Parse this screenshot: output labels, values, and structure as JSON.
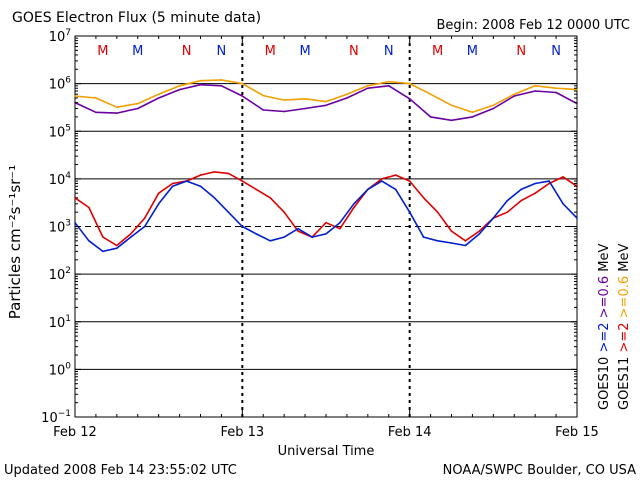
{
  "title": "GOES Electron Flux (5 minute data)",
  "begin": "Begin: 2008 Feb 12 0000 UTC",
  "updated": "Updated 2008 Feb 14 23:55:02 UTC",
  "credit": "NOAA/SWPC Boulder, CO USA",
  "colors": {
    "red": "#e00000",
    "blue": "#0020d0",
    "purple": "#6a00a0",
    "orange": "#f0a000",
    "threshold": "#000000"
  },
  "chart_data": {
    "type": "line",
    "title": "GOES Electron Flux (5 minute data)",
    "xlabel": "Universal Time",
    "ylabel": "Particles cm⁻²s⁻¹sr⁻¹",
    "y_scale": "log",
    "ylim": [
      0.1,
      10000000
    ],
    "xlim": [
      "2008-02-12 00:00",
      "2008-02-15 00:00"
    ],
    "x_ticks": [
      "Feb 12",
      "Feb 13",
      "Feb 14",
      "Feb 15"
    ],
    "y_tick_exponents": [
      -1,
      0,
      1,
      2,
      3,
      4,
      5,
      6,
      7
    ],
    "y_tick_base": "10",
    "threshold_lines": [
      1000
    ],
    "grid": true,
    "local_time_markers": [
      {
        "label": "M",
        "color": "red",
        "x": "2008-02-12 04:00"
      },
      {
        "label": "M",
        "color": "blue",
        "x": "2008-02-12 09:00"
      },
      {
        "label": "N",
        "color": "red",
        "x": "2008-02-12 16:00"
      },
      {
        "label": "N",
        "color": "blue",
        "x": "2008-02-12 21:00"
      },
      {
        "label": "M",
        "color": "red",
        "x": "2008-02-13 04:00"
      },
      {
        "label": "M",
        "color": "blue",
        "x": "2008-02-13 09:00"
      },
      {
        "label": "N",
        "color": "red",
        "x": "2008-02-13 16:00"
      },
      {
        "label": "N",
        "color": "blue",
        "x": "2008-02-13 21:00"
      },
      {
        "label": "M",
        "color": "red",
        "x": "2008-02-14 04:00"
      },
      {
        "label": "M",
        "color": "blue",
        "x": "2008-02-14 09:00"
      },
      {
        "label": "N",
        "color": "red",
        "x": "2008-02-14 16:00"
      },
      {
        "label": "N",
        "color": "blue",
        "x": "2008-02-14 21:00"
      }
    ],
    "legend": {
      "placement": "right",
      "groups": [
        {
          "satellite": "GOES10",
          "items": [
            {
              "text": ">=2",
              "color": "blue"
            },
            {
              "text": ">=0.6",
              "color": "purple"
            }
          ],
          "unit": "MeV"
        },
        {
          "satellite": "GOES11",
          "items": [
            {
              "text": ">=2",
              "color": "red"
            },
            {
              "text": ">=0.6",
              "color": "orange"
            }
          ],
          "unit": "MeV"
        }
      ]
    },
    "series": [
      {
        "color": "orange",
        "x": [
          "2008-02-12 00:00",
          "2008-02-12 03:00",
          "2008-02-12 06:00",
          "2008-02-12 09:00",
          "2008-02-12 12:00",
          "2008-02-12 15:00",
          "2008-02-12 18:00",
          "2008-02-12 21:00",
          "2008-02-13 00:00",
          "2008-02-13 03:00",
          "2008-02-13 06:00",
          "2008-02-13 09:00",
          "2008-02-13 12:00",
          "2008-02-13 15:00",
          "2008-02-13 18:00",
          "2008-02-13 21:00",
          "2008-02-14 00:00",
          "2008-02-14 03:00",
          "2008-02-14 06:00",
          "2008-02-14 09:00",
          "2008-02-14 12:00",
          "2008-02-14 15:00",
          "2008-02-14 18:00",
          "2008-02-14 21:00",
          "2008-02-15 00:00"
        ],
        "y": [
          550000,
          500000,
          320000,
          380000,
          600000,
          900000,
          1150000,
          1200000,
          1000000,
          560000,
          450000,
          480000,
          420000,
          600000,
          900000,
          1100000,
          1000000,
          600000,
          350000,
          250000,
          350000,
          600000,
          900000,
          800000,
          750000
        ]
      },
      {
        "color": "purple",
        "x": [
          "2008-02-12 00:00",
          "2008-02-12 03:00",
          "2008-02-12 06:00",
          "2008-02-12 09:00",
          "2008-02-12 12:00",
          "2008-02-12 15:00",
          "2008-02-12 18:00",
          "2008-02-12 21:00",
          "2008-02-13 00:00",
          "2008-02-13 03:00",
          "2008-02-13 06:00",
          "2008-02-13 09:00",
          "2008-02-13 12:00",
          "2008-02-13 15:00",
          "2008-02-13 18:00",
          "2008-02-13 21:00",
          "2008-02-14 00:00",
          "2008-02-14 03:00",
          "2008-02-14 06:00",
          "2008-02-14 09:00",
          "2008-02-14 12:00",
          "2008-02-14 15:00",
          "2008-02-14 18:00",
          "2008-02-14 21:00",
          "2008-02-15 00:00"
        ],
        "y": [
          400000,
          250000,
          240000,
          300000,
          500000,
          750000,
          950000,
          900000,
          550000,
          280000,
          260000,
          300000,
          350000,
          500000,
          800000,
          900000,
          480000,
          200000,
          170000,
          200000,
          300000,
          550000,
          700000,
          650000,
          380000
        ]
      },
      {
        "color": "red",
        "x": [
          "2008-02-12 00:00",
          "2008-02-12 02:00",
          "2008-02-12 04:00",
          "2008-02-12 06:00",
          "2008-02-12 08:00",
          "2008-02-12 10:00",
          "2008-02-12 12:00",
          "2008-02-12 14:00",
          "2008-02-12 16:00",
          "2008-02-12 18:00",
          "2008-02-12 20:00",
          "2008-02-12 22:00",
          "2008-02-13 00:00",
          "2008-02-13 02:00",
          "2008-02-13 04:00",
          "2008-02-13 06:00",
          "2008-02-13 08:00",
          "2008-02-13 10:00",
          "2008-02-13 12:00",
          "2008-02-13 14:00",
          "2008-02-13 16:00",
          "2008-02-13 18:00",
          "2008-02-13 20:00",
          "2008-02-13 22:00",
          "2008-02-14 00:00",
          "2008-02-14 02:00",
          "2008-02-14 04:00",
          "2008-02-14 06:00",
          "2008-02-14 08:00",
          "2008-02-14 10:00",
          "2008-02-14 12:00",
          "2008-02-14 14:00",
          "2008-02-14 16:00",
          "2008-02-14 18:00",
          "2008-02-14 20:00",
          "2008-02-14 22:00",
          "2008-02-15 00:00"
        ],
        "y": [
          4000,
          2500,
          600,
          400,
          700,
          1500,
          5000,
          8000,
          9000,
          12000,
          14000,
          13000,
          9000,
          6000,
          4000,
          2000,
          800,
          600,
          1200,
          900,
          2500,
          6000,
          10000,
          12000,
          9000,
          4000,
          2000,
          800,
          500,
          800,
          1500,
          2000,
          3500,
          5000,
          8000,
          11000,
          7000
        ]
      },
      {
        "color": "blue",
        "x": [
          "2008-02-12 00:00",
          "2008-02-12 02:00",
          "2008-02-12 04:00",
          "2008-02-12 06:00",
          "2008-02-12 08:00",
          "2008-02-12 10:00",
          "2008-02-12 12:00",
          "2008-02-12 14:00",
          "2008-02-12 16:00",
          "2008-02-12 18:00",
          "2008-02-12 20:00",
          "2008-02-12 22:00",
          "2008-02-13 00:00",
          "2008-02-13 02:00",
          "2008-02-13 04:00",
          "2008-02-13 06:00",
          "2008-02-13 08:00",
          "2008-02-13 10:00",
          "2008-02-13 12:00",
          "2008-02-13 14:00",
          "2008-02-13 16:00",
          "2008-02-13 18:00",
          "2008-02-13 20:00",
          "2008-02-13 22:00",
          "2008-02-14 00:00",
          "2008-02-14 02:00",
          "2008-02-14 04:00",
          "2008-02-14 06:00",
          "2008-02-14 08:00",
          "2008-02-14 10:00",
          "2008-02-14 12:00",
          "2008-02-14 14:00",
          "2008-02-14 16:00",
          "2008-02-14 18:00",
          "2008-02-14 20:00",
          "2008-02-14 22:00",
          "2008-02-15 00:00"
        ],
        "y": [
          1200,
          500,
          300,
          350,
          600,
          1000,
          3000,
          7000,
          9000,
          7000,
          4000,
          2000,
          1000,
          700,
          500,
          600,
          900,
          600,
          700,
          1200,
          3000,
          6000,
          9000,
          6000,
          2000,
          600,
          500,
          450,
          400,
          700,
          1500,
          3500,
          6000,
          8000,
          9000,
          3000,
          1500
        ]
      }
    ]
  }
}
